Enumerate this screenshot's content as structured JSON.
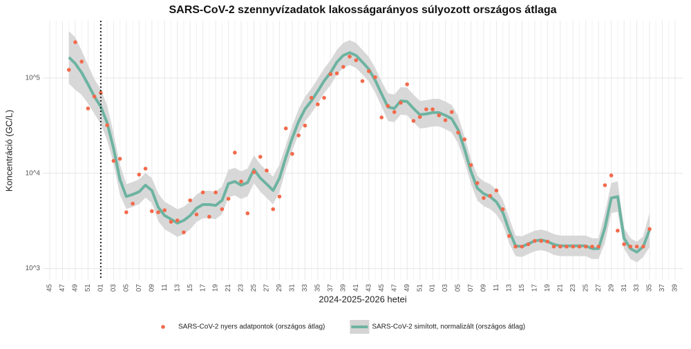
{
  "chart_data": {
    "type": "line",
    "title": "SARS-CoV-2 szennyvízadatok lakosságarányos súlyozott országos átlaga",
    "x_label": "2024-2025-2026 hetei",
    "y_label": "Koncentráció (GC/L)",
    "categories": [
      "45",
      null,
      "47",
      null,
      "49",
      null,
      "51",
      null,
      "01",
      null,
      "03",
      null,
      "05",
      null,
      "07",
      null,
      "09",
      null,
      "11",
      null,
      "13",
      null,
      "15",
      null,
      "17",
      null,
      "19",
      null,
      "21",
      null,
      "23",
      null,
      "25",
      null,
      "27",
      null,
      "29",
      null,
      "31",
      null,
      "33",
      null,
      "35",
      null,
      "37",
      null,
      "39",
      null,
      "41",
      null,
      "43",
      null,
      "45",
      null,
      "47",
      null,
      "49",
      null,
      "51",
      null,
      "01",
      null,
      "03",
      null,
      "05",
      null,
      "07",
      null,
      "09",
      null,
      "11",
      null,
      "13",
      null,
      "15",
      null,
      "17",
      null,
      "19",
      null,
      "21",
      null,
      "23",
      null,
      "25",
      null,
      "27",
      null,
      "29",
      null,
      "31",
      null,
      "33",
      null,
      "35",
      null,
      "37",
      null,
      "39"
    ],
    "log_y": true,
    "ylim": [
      760,
      400000
    ],
    "yticks": [
      {
        "value": 1000,
        "label": "10^3"
      },
      {
        "value": 10000,
        "label": "10^4"
      },
      {
        "value": 100000,
        "label": "10^5"
      }
    ],
    "grid": true,
    "legend": "bottom",
    "reference_line": {
      "x": 8,
      "style": "dotted"
    },
    "series": [
      {
        "name": "SARS-CoV-2 nyers adatpontok (országos átlag)",
        "type": "scatter",
        "color": "#f26a4b",
        "values": [
          null,
          null,
          null,
          122000,
          238000,
          149000,
          48000,
          64000,
          70000,
          32000,
          13500,
          14200,
          3900,
          4800,
          9700,
          11200,
          4000,
          3900,
          4100,
          3100,
          3200,
          2400,
          5200,
          3700,
          6300,
          3500,
          6300,
          4200,
          5400,
          16500,
          8200,
          3800,
          10300,
          14900,
          10700,
          4200,
          5700,
          29600,
          16000,
          25000,
          31700,
          62000,
          53000,
          62000,
          110000,
          112000,
          131000,
          168000,
          154000,
          93000,
          118000,
          102000,
          38600,
          51000,
          44000,
          55000,
          86000,
          35500,
          39000,
          47000,
          47000,
          40600,
          36100,
          44000,
          26800,
          22700,
          12200,
          7900,
          5500,
          5800,
          6600,
          4200,
          2200,
          1700,
          1700,
          1800,
          1950,
          1950,
          1920,
          1700,
          1700,
          1700,
          1700,
          1700,
          1700,
          1700,
          1700,
          7500,
          9500,
          2500,
          1800,
          1700,
          1700,
          1700,
          2600,
          null,
          null,
          null,
          null
        ]
      },
      {
        "name": "SARS-CoV-2 simított, normalizált (országos átlag)",
        "type": "line",
        "color": "#6db3a1",
        "band_color": "#d4d4d4",
        "values": [
          null,
          null,
          null,
          165000,
          142000,
          114000,
          86000,
          64000,
          50000,
          33800,
          18200,
          8600,
          5700,
          6000,
          6400,
          7500,
          6600,
          4400,
          3600,
          3300,
          3000,
          3200,
          3600,
          4300,
          4700,
          4700,
          4600,
          5200,
          7800,
          8200,
          7500,
          8000,
          11000,
          8900,
          7700,
          6600,
          8900,
          14700,
          23400,
          34900,
          47200,
          57600,
          72800,
          93500,
          114000,
          147000,
          173000,
          185000,
          173000,
          147000,
          124000,
          95000,
          68100,
          49600,
          48000,
          57600,
          56700,
          48000,
          41300,
          42000,
          43400,
          43400,
          40600,
          37400,
          28600,
          17900,
          10500,
          7000,
          6100,
          5700,
          5000,
          3900,
          2500,
          1730,
          1700,
          1820,
          1950,
          2000,
          1920,
          1790,
          1730,
          1730,
          1730,
          1730,
          1730,
          1620,
          1620,
          2680,
          5500,
          5700,
          2080,
          1620,
          1490,
          1700,
          2550,
          null,
          null,
          null,
          null
        ],
        "upper": [
          null,
          null,
          null,
          311000,
          268000,
          194000,
          137000,
          97200,
          75900,
          51300,
          26300,
          12400,
          7700,
          8100,
          8640,
          10100,
          8910,
          6140,
          5030,
          4610,
          4190,
          4470,
          5030,
          6000,
          6560,
          6560,
          6420,
          7260,
          10900,
          11400,
          10500,
          11200,
          15400,
          12400,
          10700,
          9210,
          12400,
          19800,
          31600,
          47100,
          63700,
          77800,
          98300,
          126000,
          154000,
          198000,
          234000,
          250000,
          234000,
          198000,
          167000,
          128000,
          91900,
          69200,
          67000,
          80400,
          79200,
          67000,
          57700,
          58600,
          60600,
          60600,
          56700,
          52200,
          39900,
          24200,
          14200,
          9450,
          8240,
          7700,
          6750,
          5270,
          3380,
          2220,
          2180,
          2340,
          2500,
          2570,
          2470,
          2300,
          2220,
          2220,
          2220,
          2220,
          2220,
          2080,
          2080,
          3870,
          7940,
          8230,
          2670,
          2080,
          1910,
          2180,
          3870,
          null,
          null,
          null,
          null
        ],
        "lower": [
          null,
          null,
          null,
          87500,
          75300,
          66800,
          53900,
          42200,
          32900,
          22300,
          12600,
          5960,
          4220,
          4440,
          4740,
          5560,
          4890,
          3150,
          2580,
          2360,
          2150,
          2290,
          2580,
          3080,
          3370,
          3370,
          3300,
          3720,
          5590,
          5870,
          5370,
          5730,
          7880,
          6380,
          5520,
          4730,
          6380,
          10900,
          17300,
          25900,
          35000,
          42700,
          53900,
          69300,
          84400,
          109000,
          128000,
          137000,
          128000,
          109000,
          91900,
          70400,
          50400,
          35500,
          34400,
          41300,
          40600,
          34400,
          29600,
          30100,
          31100,
          31100,
          29100,
          26800,
          20500,
          13300,
          7780,
          5190,
          4520,
          4220,
          3700,
          2890,
          1850,
          1350,
          1320,
          1420,
          1520,
          1560,
          1500,
          1390,
          1350,
          1350,
          1350,
          1350,
          1350,
          1260,
          1260,
          1860,
          3810,
          3950,
          1620,
          1260,
          1160,
          1320,
          1680,
          null,
          null,
          null,
          null
        ]
      }
    ]
  }
}
